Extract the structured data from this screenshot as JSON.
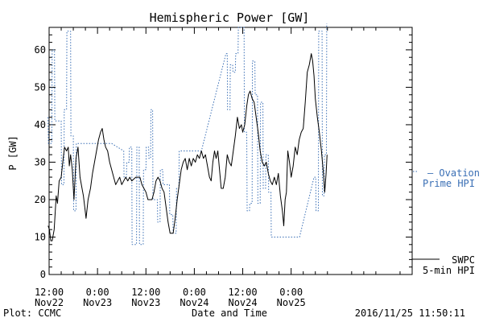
{
  "chart_data": {
    "type": "line",
    "title": "Hemispheric Power [GW]",
    "xlabel": "Date and Time",
    "ylabel": "P [GW]",
    "xlim": [
      "2016-11-22T12:00",
      "2016-11-26T06:00"
    ],
    "ylim": [
      0,
      66
    ],
    "yticks": [
      0,
      10,
      20,
      30,
      40,
      50,
      60
    ],
    "xticks": [
      {
        "time": "2016-11-22T12:00",
        "line1": "12:00",
        "line2": "Nov22"
      },
      {
        "time": "2016-11-23T00:00",
        "line1": "0:00",
        "line2": "Nov23"
      },
      {
        "time": "2016-11-23T12:00",
        "line1": "12:00",
        "line2": "Nov23"
      },
      {
        "time": "2016-11-24T00:00",
        "line1": "0:00",
        "line2": "Nov24"
      },
      {
        "time": "2016-11-24T12:00",
        "line1": "12:00",
        "line2": "Nov24"
      },
      {
        "time": "2016-11-25T00:00",
        "line1": "0:00",
        "line2": "Nov25"
      }
    ],
    "grid": false,
    "legend_position": "right",
    "series": [
      {
        "name": "Ovation Prime HPI",
        "legend_line1": "— Ovation",
        "legend_line2": "Prime HPI",
        "style": "dotted",
        "color": "#3a6fb5",
        "points": [
          [
            "2016-11-22T11:45",
            42
          ],
          [
            "2016-11-22T11:50",
            35
          ],
          [
            "2016-11-22T12:40",
            35
          ],
          [
            "2016-11-22T12:45",
            60
          ],
          [
            "2016-11-22T13:20",
            60
          ],
          [
            "2016-11-22T13:25",
            41
          ],
          [
            "2016-11-22T15:00",
            41
          ],
          [
            "2016-11-22T15:05",
            24
          ],
          [
            "2016-11-22T15:40",
            24
          ],
          [
            "2016-11-22T15:45",
            44
          ],
          [
            "2016-11-22T16:20",
            44
          ],
          [
            "2016-11-22T16:25",
            65
          ],
          [
            "2016-11-22T17:20",
            65
          ],
          [
            "2016-11-22T17:25",
            37
          ],
          [
            "2016-11-22T18:00",
            37
          ],
          [
            "2016-11-22T18:05",
            17
          ],
          [
            "2016-11-22T18:40",
            17
          ],
          [
            "2016-11-22T18:45",
            35
          ],
          [
            "2016-11-23T03:30",
            35
          ],
          [
            "2016-11-23T06:30",
            33
          ],
          [
            "2016-11-23T06:35",
            26
          ],
          [
            "2016-11-23T07:10",
            26
          ],
          [
            "2016-11-23T07:15",
            30
          ],
          [
            "2016-11-23T07:50",
            30
          ],
          [
            "2016-11-23T07:55",
            34
          ],
          [
            "2016-11-23T08:30",
            34
          ],
          [
            "2016-11-23T08:35",
            8
          ],
          [
            "2016-11-23T09:40",
            8
          ],
          [
            "2016-11-23T09:45",
            34
          ],
          [
            "2016-11-23T10:20",
            34
          ],
          [
            "2016-11-23T10:25",
            8
          ],
          [
            "2016-11-23T11:20",
            8
          ],
          [
            "2016-11-23T11:25",
            28
          ],
          [
            "2016-11-23T12:00",
            28
          ],
          [
            "2016-11-23T12:05",
            34
          ],
          [
            "2016-11-23T12:40",
            34
          ],
          [
            "2016-11-23T12:45",
            31
          ],
          [
            "2016-11-23T13:10",
            31
          ],
          [
            "2016-11-23T13:15",
            44
          ],
          [
            "2016-11-23T13:40",
            44
          ],
          [
            "2016-11-23T13:45",
            20
          ],
          [
            "2016-11-23T14:50",
            20
          ],
          [
            "2016-11-23T14:55",
            14
          ],
          [
            "2016-11-23T15:30",
            14
          ],
          [
            "2016-11-23T15:35",
            28
          ],
          [
            "2016-11-23T16:10",
            28
          ],
          [
            "2016-11-23T16:15",
            24
          ],
          [
            "2016-11-23T17:50",
            24
          ],
          [
            "2016-11-23T17:55",
            16
          ],
          [
            "2016-11-23T18:40",
            16
          ],
          [
            "2016-11-23T18:45",
            11
          ],
          [
            "2016-11-23T19:30",
            11
          ],
          [
            "2016-11-23T19:35",
            23
          ],
          [
            "2016-11-23T20:10",
            23
          ],
          [
            "2016-11-23T20:15",
            33
          ],
          [
            "2016-11-24T01:45",
            33
          ],
          [
            "2016-11-24T07:50",
            59
          ],
          [
            "2016-11-24T08:10",
            59
          ],
          [
            "2016-11-24T08:15",
            44
          ],
          [
            "2016-11-24T08:50",
            44
          ],
          [
            "2016-11-24T08:55",
            56
          ],
          [
            "2016-11-24T09:30",
            56
          ],
          [
            "2016-11-24T09:35",
            54
          ],
          [
            "2016-11-24T10:10",
            54
          ],
          [
            "2016-11-24T10:15",
            59
          ],
          [
            "2016-11-24T10:50",
            59
          ],
          [
            "2016-11-24T10:55",
            66
          ],
          [
            "2016-11-24T12:20",
            66
          ],
          [
            "2016-11-24T12:25",
            38
          ],
          [
            "2016-11-24T13:00",
            38
          ],
          [
            "2016-11-24T13:05",
            17
          ],
          [
            "2016-11-24T13:40",
            17
          ],
          [
            "2016-11-24T13:45",
            19
          ],
          [
            "2016-11-24T14:20",
            19
          ],
          [
            "2016-11-24T14:25",
            57
          ],
          [
            "2016-11-24T15:00",
            57
          ],
          [
            "2016-11-24T15:05",
            48
          ],
          [
            "2016-11-24T15:40",
            48
          ],
          [
            "2016-11-24T15:45",
            19
          ],
          [
            "2016-11-24T16:20",
            19
          ],
          [
            "2016-11-24T16:25",
            46
          ],
          [
            "2016-11-24T17:00",
            46
          ],
          [
            "2016-11-24T17:05",
            23
          ],
          [
            "2016-11-24T17:40",
            23
          ],
          [
            "2016-11-24T17:45",
            32
          ],
          [
            "2016-11-24T18:20",
            32
          ],
          [
            "2016-11-24T18:25",
            22
          ],
          [
            "2016-11-24T19:00",
            22
          ],
          [
            "2016-11-24T19:05",
            10
          ],
          [
            "2016-11-25T02:05",
            10
          ],
          [
            "2016-11-25T05:40",
            26
          ],
          [
            "2016-11-25T06:05",
            26
          ],
          [
            "2016-11-25T06:10",
            17
          ],
          [
            "2016-11-25T06:45",
            17
          ],
          [
            "2016-11-25T06:50",
            65
          ],
          [
            "2016-11-25T07:40",
            65
          ],
          [
            "2016-11-25T07:45",
            21
          ],
          [
            "2016-11-25T08:10",
            21
          ],
          [
            "2016-11-25T08:15",
            32
          ],
          [
            "2016-11-25T08:45",
            32
          ],
          [
            "2016-11-25T08:50",
            67
          ]
        ]
      },
      {
        "name": "SWPC 5-min HPI",
        "legend_line1": "SWPC",
        "legend_line2": "5-min HPI",
        "style": "solid",
        "color": "#000000",
        "points": [
          [
            "2016-11-22T11:45",
            13
          ],
          [
            "2016-11-22T12:05",
            12
          ],
          [
            "2016-11-22T12:25",
            9
          ],
          [
            "2016-11-22T12:45",
            9
          ],
          [
            "2016-11-22T13:15",
            12
          ],
          [
            "2016-11-22T13:45",
            21
          ],
          [
            "2016-11-22T14:05",
            19
          ],
          [
            "2016-11-22T14:30",
            25
          ],
          [
            "2016-11-22T15:00",
            26
          ],
          [
            "2016-11-22T15:30",
            31
          ],
          [
            "2016-11-22T15:50",
            34
          ],
          [
            "2016-11-22T16:20",
            33
          ],
          [
            "2016-11-22T16:45",
            34
          ],
          [
            "2016-11-22T17:00",
            29
          ],
          [
            "2016-11-22T17:20",
            32
          ],
          [
            "2016-11-22T17:45",
            28
          ],
          [
            "2016-11-22T18:10",
            20
          ],
          [
            "2016-11-22T18:40",
            31
          ],
          [
            "2016-11-22T19:10",
            34
          ],
          [
            "2016-11-22T19:40",
            26
          ],
          [
            "2016-11-22T20:10",
            23
          ],
          [
            "2016-11-22T20:30",
            21
          ],
          [
            "2016-11-22T20:50",
            18
          ],
          [
            "2016-11-22T21:10",
            15
          ],
          [
            "2016-11-22T21:40",
            20
          ],
          [
            "2016-11-22T22:15",
            23
          ],
          [
            "2016-11-22T22:45",
            27
          ],
          [
            "2016-11-22T23:15",
            30
          ],
          [
            "2016-11-22T23:45",
            33
          ],
          [
            "2016-11-23T00:15",
            36
          ],
          [
            "2016-11-23T00:45",
            38
          ],
          [
            "2016-11-23T01:10",
            39
          ],
          [
            "2016-11-23T01:35",
            36
          ],
          [
            "2016-11-23T02:00",
            34
          ],
          [
            "2016-11-23T02:30",
            33
          ],
          [
            "2016-11-23T03:00",
            30
          ],
          [
            "2016-11-23T03:30",
            28
          ],
          [
            "2016-11-23T04:00",
            26
          ],
          [
            "2016-11-23T04:30",
            24
          ],
          [
            "2016-11-23T05:00",
            25
          ],
          [
            "2016-11-23T05:30",
            26
          ],
          [
            "2016-11-23T06:00",
            24
          ],
          [
            "2016-11-23T06:30",
            25
          ],
          [
            "2016-11-23T07:00",
            26
          ],
          [
            "2016-11-23T07:30",
            25
          ],
          [
            "2016-11-23T08:00",
            26
          ],
          [
            "2016-11-23T08:30",
            25
          ],
          [
            "2016-11-23T09:30",
            26
          ],
          [
            "2016-11-23T10:30",
            26
          ],
          [
            "2016-11-23T11:00",
            24
          ],
          [
            "2016-11-23T11:30",
            23
          ],
          [
            "2016-11-23T12:00",
            22
          ],
          [
            "2016-11-23T12:30",
            20
          ],
          [
            "2016-11-23T13:30",
            20
          ],
          [
            "2016-11-23T14:00",
            22
          ],
          [
            "2016-11-23T14:30",
            25
          ],
          [
            "2016-11-23T15:00",
            26
          ],
          [
            "2016-11-23T15:30",
            25
          ],
          [
            "2016-11-23T16:00",
            23
          ],
          [
            "2016-11-23T16:30",
            22
          ],
          [
            "2016-11-23T17:00",
            18
          ],
          [
            "2016-11-23T17:30",
            14
          ],
          [
            "2016-11-23T18:00",
            11
          ],
          [
            "2016-11-23T18:45",
            11
          ],
          [
            "2016-11-23T19:15",
            15
          ],
          [
            "2016-11-23T19:45",
            20
          ],
          [
            "2016-11-23T20:15",
            24
          ],
          [
            "2016-11-23T20:45",
            28
          ],
          [
            "2016-11-23T21:15",
            30
          ],
          [
            "2016-11-23T21:45",
            31
          ],
          [
            "2016-11-23T22:15",
            28
          ],
          [
            "2016-11-23T22:45",
            31
          ],
          [
            "2016-11-23T23:15",
            29
          ],
          [
            "2016-11-23T23:45",
            31
          ],
          [
            "2016-11-24T00:15",
            30
          ],
          [
            "2016-11-24T00:45",
            32
          ],
          [
            "2016-11-24T01:15",
            31
          ],
          [
            "2016-11-24T01:45",
            33
          ],
          [
            "2016-11-24T02:15",
            31
          ],
          [
            "2016-11-24T02:45",
            32
          ],
          [
            "2016-11-24T03:15",
            29
          ],
          [
            "2016-11-24T03:45",
            26
          ],
          [
            "2016-11-24T04:10",
            25
          ],
          [
            "2016-11-24T04:35",
            30
          ],
          [
            "2016-11-24T05:00",
            33
          ],
          [
            "2016-11-24T05:25",
            31
          ],
          [
            "2016-11-24T05:50",
            33
          ],
          [
            "2016-11-24T06:15",
            28
          ],
          [
            "2016-11-24T06:40",
            23
          ],
          [
            "2016-11-24T07:10",
            23
          ],
          [
            "2016-11-24T07:40",
            26
          ],
          [
            "2016-11-24T08:10",
            32
          ],
          [
            "2016-11-24T08:40",
            30
          ],
          [
            "2016-11-24T09:10",
            29
          ],
          [
            "2016-11-24T09:40",
            33
          ],
          [
            "2016-11-24T10:10",
            37
          ],
          [
            "2016-11-24T10:40",
            42
          ],
          [
            "2016-11-24T11:10",
            39
          ],
          [
            "2016-11-24T11:40",
            40
          ],
          [
            "2016-11-24T12:00",
            38
          ],
          [
            "2016-11-24T12:30",
            40
          ],
          [
            "2016-11-24T13:00",
            45
          ],
          [
            "2016-11-24T13:25",
            48
          ],
          [
            "2016-11-24T13:50",
            49
          ],
          [
            "2016-11-24T14:20",
            47
          ],
          [
            "2016-11-24T14:50",
            46
          ],
          [
            "2016-11-24T15:20",
            42
          ],
          [
            "2016-11-24T15:50",
            38
          ],
          [
            "2016-11-24T16:20",
            33
          ],
          [
            "2016-11-24T16:50",
            30
          ],
          [
            "2016-11-24T17:20",
            29
          ],
          [
            "2016-11-24T17:50",
            30
          ],
          [
            "2016-11-24T18:20",
            27
          ],
          [
            "2016-11-24T18:50",
            25
          ],
          [
            "2016-11-24T19:20",
            24
          ],
          [
            "2016-11-24T19:50",
            26
          ],
          [
            "2016-11-24T20:20",
            24
          ],
          [
            "2016-11-24T20:50",
            27
          ],
          [
            "2016-11-24T21:20",
            21
          ],
          [
            "2016-11-24T21:50",
            17
          ],
          [
            "2016-11-24T22:10",
            13
          ],
          [
            "2016-11-24T22:30",
            20
          ],
          [
            "2016-11-24T22:50",
            22
          ],
          [
            "2016-11-24T23:10",
            33
          ],
          [
            "2016-11-24T23:35",
            30
          ],
          [
            "2016-11-25T00:00",
            26
          ],
          [
            "2016-11-25T00:30",
            29
          ],
          [
            "2016-11-25T01:00",
            34
          ],
          [
            "2016-11-25T01:30",
            32
          ],
          [
            "2016-11-25T02:00",
            36
          ],
          [
            "2016-11-25T02:30",
            38
          ],
          [
            "2016-11-25T03:00",
            39
          ],
          [
            "2016-11-25T03:30",
            46
          ],
          [
            "2016-11-25T04:00",
            54
          ],
          [
            "2016-11-25T04:30",
            56
          ],
          [
            "2016-11-25T05:00",
            59
          ],
          [
            "2016-11-25T05:20",
            57
          ],
          [
            "2016-11-25T05:40",
            53
          ],
          [
            "2016-11-25T06:00",
            47
          ],
          [
            "2016-11-25T06:30",
            42
          ],
          [
            "2016-11-25T07:00",
            38
          ],
          [
            "2016-11-25T07:30",
            33
          ],
          [
            "2016-11-25T08:00",
            27
          ],
          [
            "2016-11-25T08:20",
            22
          ],
          [
            "2016-11-25T08:40",
            27
          ],
          [
            "2016-11-25T08:55",
            32
          ]
        ]
      }
    ]
  },
  "footer": {
    "left": "Plot: CCMC",
    "right": "2016/11/25 11:50:11"
  }
}
